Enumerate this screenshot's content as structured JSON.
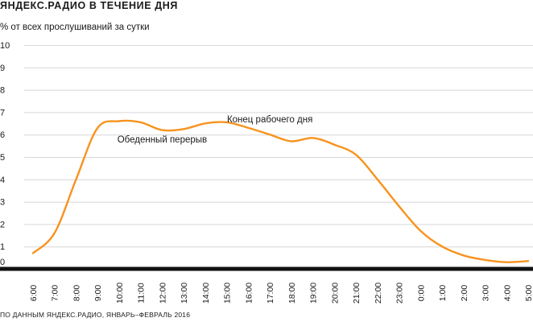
{
  "chart_data": {
    "type": "line",
    "title": "ЯНДЕКС.РАДИО В ТЕЧЕНИЕ ДНЯ",
    "ylabel": "% от всех прослушиваний за сутки",
    "xlabel": "",
    "source": "ПО ДАННЫМ ЯНДЕКС.РАДИО, ЯНВАРЬ–ФЕВРАЛЬ 2016",
    "ylim": [
      0,
      10
    ],
    "yticks": [
      "0",
      "1",
      "2",
      "3",
      "4",
      "5",
      "6",
      "7",
      "8",
      "9",
      "10"
    ],
    "grid": true,
    "categories": [
      "6:00",
      "7:00",
      "8:00",
      "9:00",
      "10:00",
      "11:00",
      "12:00",
      "13:00",
      "14:00",
      "15:00",
      "16:00",
      "17:00",
      "18:00",
      "19:00",
      "20:00",
      "21:00",
      "22:00",
      "23:00",
      "0:00",
      "1:00",
      "2:00",
      "3:00",
      "4:00",
      "5:00"
    ],
    "series": [
      {
        "name": "Яндекс.Радио",
        "color": "#f7931e",
        "values": [
          0.7,
          1.6,
          4.0,
          6.3,
          6.6,
          6.55,
          6.2,
          6.25,
          6.5,
          6.55,
          6.3,
          6.0,
          5.7,
          5.85,
          5.55,
          5.1,
          4.0,
          2.8,
          1.7,
          1.0,
          0.6,
          0.4,
          0.3,
          0.35
        ]
      }
    ],
    "annotations": [
      {
        "text": "Обеденный перерыв",
        "x": "12:00",
        "y": 5.65
      },
      {
        "text": "Конец рабочего дня",
        "x": "17:00",
        "y": 6.55
      }
    ]
  }
}
